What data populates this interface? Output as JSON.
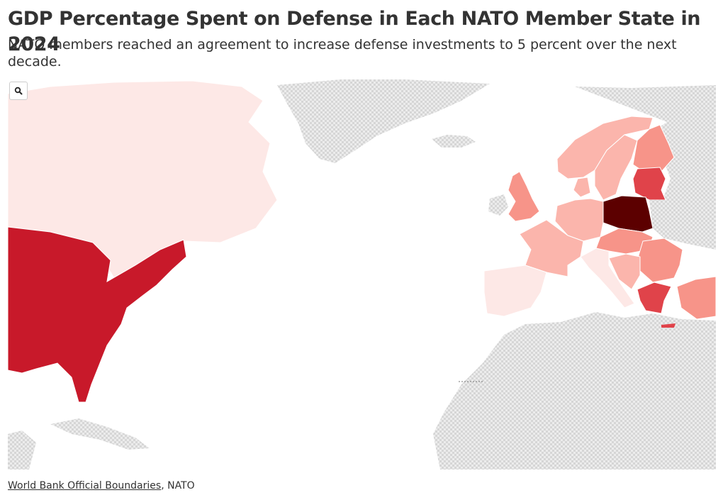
{
  "header": {
    "title": "GDP Percentage Spent on Defense in Each NATO Member State in 2024",
    "subtitle": "NATO members reached an agreement to increase defense investments to 5 percent over the next decade."
  },
  "toolbar": {
    "zoom_icon": "magnifier-icon"
  },
  "footer": {
    "source_link": "World Bank Official Boundaries",
    "source_separator": ", ",
    "source_other": "NATO"
  },
  "colors": {
    "no_data_pattern": "#d9d9d9",
    "level_very_low": "#fde8e6",
    "level_low": "#fbb5ac",
    "level_mid": "#f79489",
    "level_high": "#e0434a",
    "level_us": "#c8192a",
    "level_max": "#5c0000",
    "border": "#ffffff"
  }
}
